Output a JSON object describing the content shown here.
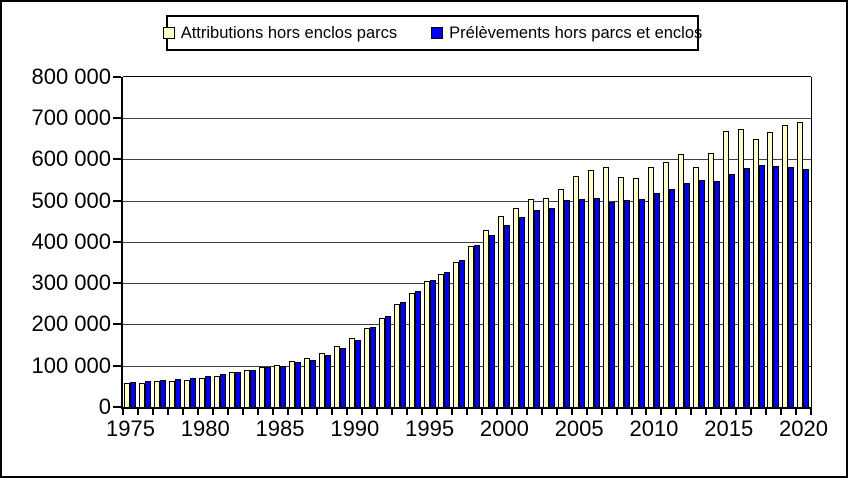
{
  "legend": [
    {
      "label": "Attributions hors enclos parcs",
      "color": "#ffffcc"
    },
    {
      "label": "Prélèvements hors parcs et enclos",
      "color": "#0000ee"
    }
  ],
  "chart_data": {
    "type": "bar",
    "title": "",
    "xlabel": "",
    "ylabel": "",
    "grid": true,
    "legend_position": "top-center",
    "ylim": [
      0,
      800000
    ],
    "ytick_interval": 100000,
    "ytick_labels": [
      "0",
      "100 000",
      "200 000",
      "300 000",
      "400 000",
      "500 000",
      "600 000",
      "700 000",
      "800 000"
    ],
    "xtick_labels": [
      "1975",
      "1980",
      "1985",
      "1990",
      "1995",
      "2000",
      "2005",
      "2010",
      "2015",
      "2020"
    ],
    "categories": [
      1975,
      1976,
      1977,
      1978,
      1979,
      1980,
      1981,
      1982,
      1983,
      1984,
      1985,
      1986,
      1987,
      1988,
      1989,
      1990,
      1991,
      1992,
      1993,
      1994,
      1995,
      1996,
      1997,
      1998,
      1999,
      2000,
      2001,
      2002,
      2003,
      2004,
      2005,
      2006,
      2007,
      2008,
      2009,
      2010,
      2011,
      2012,
      2013,
      2014,
      2015,
      2016,
      2017,
      2018,
      2019,
      2020
    ],
    "series": [
      {
        "name": "Attributions hors enclos parcs",
        "color": "#ffffcc",
        "values": [
          57000,
          58000,
          62000,
          64000,
          66000,
          70000,
          76000,
          84000,
          90000,
          97000,
          101000,
          111000,
          118000,
          130000,
          147000,
          167000,
          192000,
          215000,
          250000,
          277000,
          305000,
          323000,
          352000,
          390000,
          430000,
          463000,
          483000,
          505000,
          507000,
          528000,
          560000,
          574000,
          581000,
          558000,
          554000,
          581000,
          593000,
          613000,
          583000,
          616000,
          668000,
          673000,
          650000,
          667000,
          683000,
          690000
        ]
      },
      {
        "name": "Prélèvements hors parcs et enclos",
        "color": "#0000ee",
        "values": [
          60000,
          63000,
          66000,
          68000,
          71000,
          74000,
          79000,
          86000,
          89000,
          96000,
          100000,
          108000,
          114000,
          127000,
          143000,
          162000,
          195000,
          220000,
          254000,
          282000,
          309000,
          328000,
          357000,
          393000,
          418000,
          441000,
          461000,
          478000,
          482000,
          502000,
          504000,
          507000,
          497000,
          501000,
          505000,
          518000,
          528000,
          543000,
          550000,
          548000,
          566000,
          580000,
          586000,
          585000,
          583000,
          578000
        ]
      }
    ]
  }
}
